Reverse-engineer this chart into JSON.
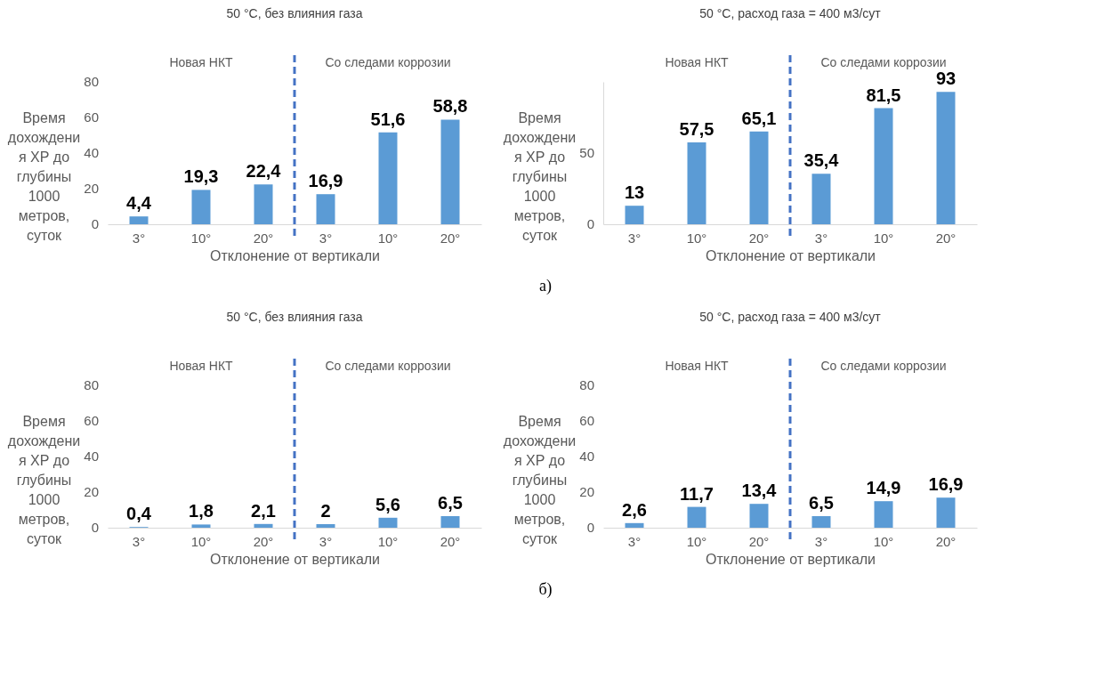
{
  "chart_data": [
    {
      "type": "bar",
      "title": "50 °C, без влияния газа",
      "xlabel": "Отклонение от вертикали",
      "ylabel": "Время дохождения ХР до глубины 1000 метров, суток",
      "categories": [
        "3°",
        "10°",
        "20°",
        "3°",
        "10°",
        "20°"
      ],
      "values": [
        4.4,
        19.3,
        22.4,
        16.9,
        51.6,
        58.8
      ],
      "color": "#5b9bd5",
      "ylim": [
        0,
        80
      ],
      "yticks": [
        0,
        20,
        40,
        60,
        80
      ],
      "value_labels": [
        "4,4",
        "19,3",
        "22,4",
        "16,9",
        "51,6",
        "58,8"
      ],
      "annotations": [
        "Новая НКТ",
        "Со следами коррозии"
      ]
    },
    {
      "type": "bar",
      "title": "50 °C, расход газа = 400 м3/сут",
      "xlabel": "Отклонение от вертикали",
      "ylabel": "Время дохождения ХР до глубины 1000 метров, суток",
      "categories": [
        "3°",
        "10°",
        "20°",
        "3°",
        "10°",
        "20°"
      ],
      "values": [
        13,
        57.5,
        65.1,
        35.4,
        81.5,
        93
      ],
      "color": "#5b9bd5",
      "ylim": [
        0,
        100
      ],
      "yticks": [
        0,
        50
      ],
      "value_labels": [
        "13",
        "57,5",
        "65,1",
        "35,4",
        "81,5",
        "93"
      ],
      "annotations": [
        "Новая НКТ",
        "Со следами коррозии",
        "а)"
      ]
    },
    {
      "type": "bar",
      "title": "50 °C, без влияния газа",
      "xlabel": "Отклонение от вертикали",
      "ylabel": "Время дохождения ХР до глубины 1000 метров, суток",
      "categories": [
        "3°",
        "10°",
        "20°",
        "3°",
        "10°",
        "20°"
      ],
      "values": [
        0.4,
        1.8,
        2.1,
        2,
        5.6,
        6.5
      ],
      "color": "#5b9bd5",
      "ylim": [
        0,
        80
      ],
      "yticks": [
        0,
        20,
        40,
        60,
        80
      ],
      "value_labels": [
        "0,4",
        "1,8",
        "2,1",
        "2",
        "5,6",
        "6,5"
      ],
      "annotations": [
        "Новая НКТ",
        "Со следами коррозии"
      ]
    },
    {
      "type": "bar",
      "title": "50 °C, расход газа = 400 м3/сут",
      "xlabel": "Отклонение от вертикали",
      "ylabel": "Время дохождения ХР до глубины 1000 метров, суток",
      "categories": [
        "3°",
        "10°",
        "20°",
        "3°",
        "10°",
        "20°"
      ],
      "values": [
        2.6,
        11.7,
        13.4,
        6.5,
        14.9,
        16.9
      ],
      "color": "#5b9bd5",
      "ylim": [
        0,
        80
      ],
      "yticks": [
        0,
        20,
        40,
        60,
        80
      ],
      "value_labels": [
        "2,6",
        "11,7",
        "13,4",
        "6,5",
        "14,9",
        "16,9"
      ],
      "annotations": [
        "Новая НКТ",
        "Со следами коррозии",
        "б)"
      ]
    }
  ]
}
